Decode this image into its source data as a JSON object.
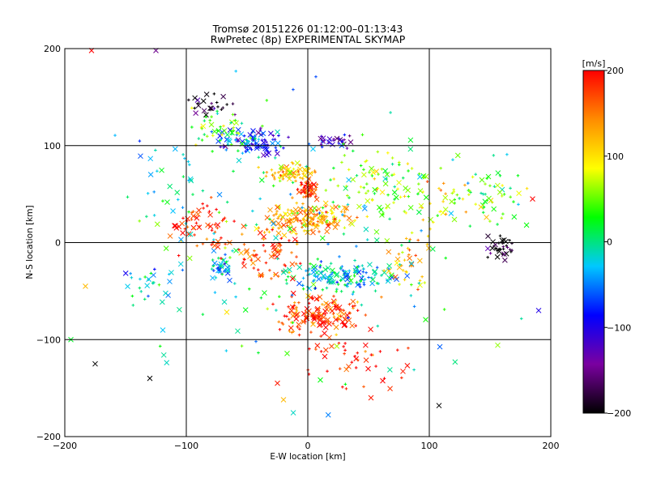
{
  "chart_data": {
    "type": "scatter",
    "title": "Tromsø 20151226 01:12:00–01:13:43",
    "subtitle": "RwPretec (8p) EXPERIMENTAL SKYMAP",
    "xlabel": "E-W location [km]",
    "ylabel": "N-S location [km]",
    "xlim": [
      -200,
      200
    ],
    "ylim": [
      -200,
      200
    ],
    "xticks": [
      "-200",
      "-100",
      "0",
      "100",
      "200"
    ],
    "yticks": [
      "-200",
      "-100",
      "0",
      "100",
      "200"
    ],
    "grid": true,
    "markers": [
      "x",
      "+"
    ],
    "colorbar": {
      "label": "[m/s]",
      "range": [
        -200,
        200
      ],
      "ticks": [
        "200",
        "100",
        "0",
        "-100",
        "-200"
      ],
      "colors": [
        "#000000",
        "#7a00a0",
        "#0000ff",
        "#00c8ff",
        "#00ff00",
        "#ffff00",
        "#ff8c00",
        "#ff0000"
      ]
    },
    "clusters": [
      {
        "x": 0,
        "y": 25,
        "spread_x": 30,
        "spread_y": 12,
        "count": 170,
        "velocity": 125
      },
      {
        "x": -45,
        "y": 105,
        "spread_x": 20,
        "spread_y": 12,
        "count": 90,
        "velocity": -75
      },
      {
        "x": -15,
        "y": 72,
        "spread_x": 18,
        "spread_y": 8,
        "count": 70,
        "velocity": 110
      },
      {
        "x": 0,
        "y": 55,
        "spread_x": 6,
        "spread_y": 8,
        "count": 55,
        "velocity": 190
      },
      {
        "x": 30,
        "y": -35,
        "spread_x": 35,
        "spread_y": 12,
        "count": 140,
        "velocity": -25
      },
      {
        "x": 10,
        "y": -75,
        "spread_x": 28,
        "spread_y": 18,
        "count": 150,
        "velocity": 180
      },
      {
        "x": 20,
        "y": 105,
        "spread_x": 12,
        "spread_y": 6,
        "count": 30,
        "velocity": -120
      },
      {
        "x": -70,
        "y": 115,
        "spread_x": 20,
        "spread_y": 18,
        "count": 45,
        "velocity": 40
      },
      {
        "x": -80,
        "y": 140,
        "spread_x": 18,
        "spread_y": 10,
        "count": 25,
        "velocity": -190
      },
      {
        "x": -70,
        "y": -25,
        "spread_x": 8,
        "spread_y": 10,
        "count": 40,
        "velocity": -40
      },
      {
        "x": -85,
        "y": 20,
        "spread_x": 22,
        "spread_y": 22,
        "count": 60,
        "velocity": 180
      },
      {
        "x": -30,
        "y": -15,
        "spread_x": 22,
        "spread_y": 22,
        "count": 70,
        "velocity": 175
      },
      {
        "x": 160,
        "y": -5,
        "spread_x": 14,
        "spread_y": 10,
        "count": 35,
        "velocity": -200
      },
      {
        "x": 155,
        "y": 50,
        "spread_x": 25,
        "spread_y": 30,
        "count": 45,
        "velocity": 30
      },
      {
        "x": 120,
        "y": 50,
        "spread_x": 25,
        "spread_y": 30,
        "count": 35,
        "velocity": 100
      },
      {
        "x": 80,
        "y": -20,
        "spread_x": 20,
        "spread_y": 25,
        "count": 40,
        "velocity": 130
      },
      {
        "x": 60,
        "y": 60,
        "spread_x": 35,
        "spread_y": 30,
        "count": 90,
        "velocity": 60
      },
      {
        "x": -130,
        "y": -40,
        "spread_x": 20,
        "spread_y": 20,
        "count": 25,
        "velocity": -30
      },
      {
        "x": -120,
        "y": 60,
        "spread_x": 25,
        "spread_y": 35,
        "count": 25,
        "velocity": -10
      },
      {
        "x": 40,
        "y": -120,
        "spread_x": 40,
        "spread_y": 25,
        "count": 45,
        "velocity": 195
      },
      {
        "x": 0,
        "y": 0,
        "spread_x": 120,
        "spread_y": 120,
        "count": 160,
        "velocity": 0
      }
    ],
    "outliers": [
      {
        "x": -178,
        "y": 198,
        "velocity": 200
      },
      {
        "x": -125,
        "y": 198,
        "velocity": -150
      },
      {
        "x": 108,
        "y": -168,
        "velocity": -200
      },
      {
        "x": -175,
        "y": -125,
        "velocity": -200
      },
      {
        "x": -195,
        "y": -100,
        "velocity": 20
      },
      {
        "x": -183,
        "y": -45,
        "velocity": 120
      },
      {
        "x": 185,
        "y": 45,
        "velocity": 200
      },
      {
        "x": 190,
        "y": -70,
        "velocity": -100
      },
      {
        "x": -25,
        "y": -145,
        "velocity": 190
      },
      {
        "x": -20,
        "y": -162,
        "velocity": 120
      },
      {
        "x": 52,
        "y": -160,
        "velocity": 190
      },
      {
        "x": -130,
        "y": -140,
        "velocity": -200
      }
    ]
  }
}
